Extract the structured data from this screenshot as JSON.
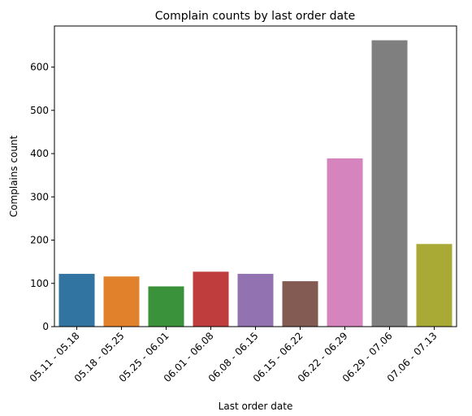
{
  "chart_data": {
    "type": "bar",
    "title": "Complain counts by last order date",
    "xlabel": "Last order date",
    "ylabel": "Complains count",
    "categories": [
      "05.11 - 05.18",
      "05.18 - 05.25",
      "05.25 - 06.01",
      "06.01 - 06.08",
      "06.08 - 06.15",
      "06.15 - 06.22",
      "06.22 - 06.29",
      "06.29 - 07.06",
      "07.06 - 07.13"
    ],
    "values": [
      122,
      116,
      93,
      127,
      122,
      105,
      389,
      662,
      191
    ],
    "colors": [
      "#3274a1",
      "#e1812c",
      "#3a923a",
      "#c03d3e",
      "#9372b2",
      "#845b53",
      "#d684bd",
      "#7f7f7f",
      "#a9aa35"
    ],
    "yticks": [
      0,
      100,
      200,
      300,
      400,
      500,
      600
    ],
    "ylim": [
      0,
      695
    ],
    "grid": false,
    "legend": "none"
  }
}
